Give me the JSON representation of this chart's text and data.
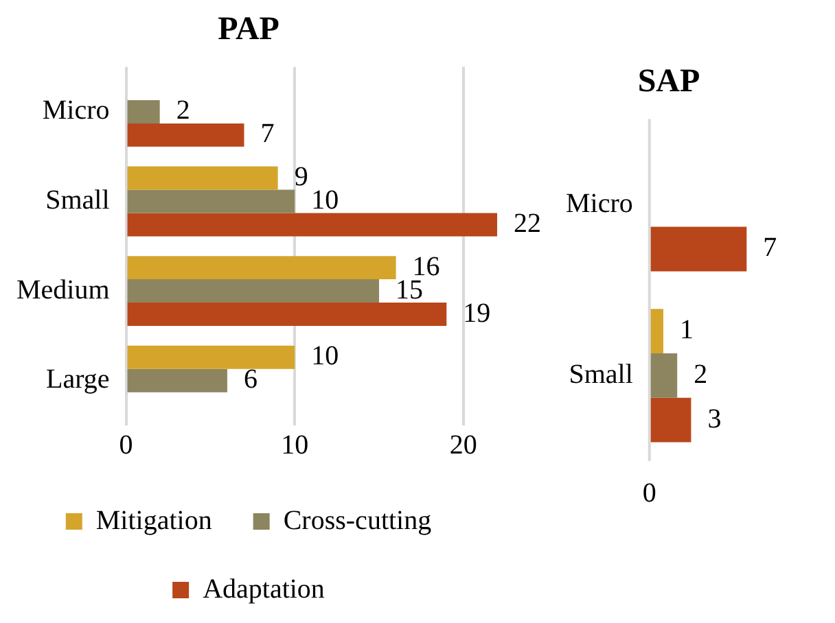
{
  "chart_data": [
    {
      "type": "bar",
      "orientation": "horizontal",
      "title": "PAP",
      "categories": [
        "Micro",
        "Small",
        "Medium",
        "Large"
      ],
      "series": [
        {
          "name": "Mitigation",
          "color": "#d4a52a",
          "values": [
            null,
            9,
            16,
            10
          ]
        },
        {
          "name": "Cross-cutting",
          "color": "#8c8560",
          "values": [
            2,
            10,
            15,
            6
          ]
        },
        {
          "name": "Adaptation",
          "color": "#b8461a",
          "values": [
            7,
            22,
            19,
            null
          ]
        }
      ],
      "xlim": [
        0,
        22
      ],
      "xticks": [
        0,
        10,
        20
      ],
      "grid": "x",
      "legend": "bottom",
      "data_labels": true
    },
    {
      "type": "bar",
      "orientation": "horizontal",
      "title": "SAP",
      "categories": [
        "Micro",
        "Small"
      ],
      "series": [
        {
          "color": "#d4a52a",
          "values": [
            null,
            1
          ]
        },
        {
          "color": "#8c8560",
          "values": [
            null,
            2
          ]
        },
        {
          "color": "#b8461a",
          "values": [
            7,
            3
          ]
        }
      ],
      "annotations": [
        "0"
      ],
      "data_labels": true
    }
  ]
}
